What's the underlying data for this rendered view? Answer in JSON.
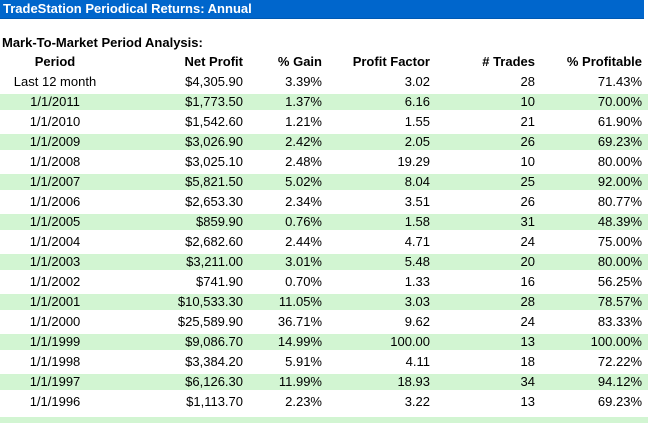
{
  "title_bar": {
    "text": "TradeStation Periodical Returns: Annual"
  },
  "section_label": "Mark-To-Market Period Analysis:",
  "colors": {
    "title-bar-bg": "#0066CC",
    "title-bar-border": "#0059B3",
    "title-bar-text": "#FFFFFF",
    "row-alt-bg": "#D2F5D2",
    "text": "#000000"
  },
  "table": {
    "columns": [
      "Period",
      "Net Profit",
      "% Gain",
      "Profit Factor",
      "# Trades",
      "% Profitable"
    ],
    "rows": [
      {
        "period": "Last 12 month",
        "net_profit": "$4,305.90",
        "pct_gain": "3.39%",
        "profit_factor": "3.02",
        "num_trades": "28",
        "pct_profitable": "71.43%"
      },
      {
        "period": "1/1/2011",
        "net_profit": "$1,773.50",
        "pct_gain": "1.37%",
        "profit_factor": "6.16",
        "num_trades": "10",
        "pct_profitable": "70.00%"
      },
      {
        "period": "1/1/2010",
        "net_profit": "$1,542.60",
        "pct_gain": "1.21%",
        "profit_factor": "1.55",
        "num_trades": "21",
        "pct_profitable": "61.90%"
      },
      {
        "period": "1/1/2009",
        "net_profit": "$3,026.90",
        "pct_gain": "2.42%",
        "profit_factor": "2.05",
        "num_trades": "26",
        "pct_profitable": "69.23%"
      },
      {
        "period": "1/1/2008",
        "net_profit": "$3,025.10",
        "pct_gain": "2.48%",
        "profit_factor": "19.29",
        "num_trades": "10",
        "pct_profitable": "80.00%"
      },
      {
        "period": "1/1/2007",
        "net_profit": "$5,821.50",
        "pct_gain": "5.02%",
        "profit_factor": "8.04",
        "num_trades": "25",
        "pct_profitable": "92.00%"
      },
      {
        "period": "1/1/2006",
        "net_profit": "$2,653.30",
        "pct_gain": "2.34%",
        "profit_factor": "3.51",
        "num_trades": "26",
        "pct_profitable": "80.77%"
      },
      {
        "period": "1/1/2005",
        "net_profit": "$859.90",
        "pct_gain": "0.76%",
        "profit_factor": "1.58",
        "num_trades": "31",
        "pct_profitable": "48.39%"
      },
      {
        "period": "1/1/2004",
        "net_profit": "$2,682.60",
        "pct_gain": "2.44%",
        "profit_factor": "4.71",
        "num_trades": "24",
        "pct_profitable": "75.00%"
      },
      {
        "period": "1/1/2003",
        "net_profit": "$3,211.00",
        "pct_gain": "3.01%",
        "profit_factor": "5.48",
        "num_trades": "20",
        "pct_profitable": "80.00%"
      },
      {
        "period": "1/1/2002",
        "net_profit": "$741.90",
        "pct_gain": "0.70%",
        "profit_factor": "1.33",
        "num_trades": "16",
        "pct_profitable": "56.25%"
      },
      {
        "period": "1/1/2001",
        "net_profit": "$10,533.30",
        "pct_gain": "11.05%",
        "profit_factor": "3.03",
        "num_trades": "28",
        "pct_profitable": "78.57%"
      },
      {
        "period": "1/1/2000",
        "net_profit": "$25,589.90",
        "pct_gain": "36.71%",
        "profit_factor": "9.62",
        "num_trades": "24",
        "pct_profitable": "83.33%"
      },
      {
        "period": "1/1/1999",
        "net_profit": "$9,086.70",
        "pct_gain": "14.99%",
        "profit_factor": "100.00",
        "num_trades": "13",
        "pct_profitable": "100.00%"
      },
      {
        "period": "1/1/1998",
        "net_profit": "$3,384.20",
        "pct_gain": "5.91%",
        "profit_factor": "4.11",
        "num_trades": "18",
        "pct_profitable": "72.22%"
      },
      {
        "period": "1/1/1997",
        "net_profit": "$6,126.30",
        "pct_gain": "11.99%",
        "profit_factor": "18.93",
        "num_trades": "34",
        "pct_profitable": "94.12%"
      },
      {
        "period": "1/1/1996",
        "net_profit": "$1,113.70",
        "pct_gain": "2.23%",
        "profit_factor": "3.22",
        "num_trades": "13",
        "pct_profitable": "69.23%"
      }
    ]
  }
}
